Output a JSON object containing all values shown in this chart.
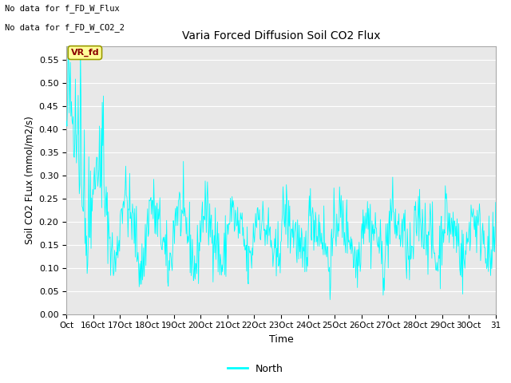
{
  "title": "Varia Forced Diffusion Soil CO2 Flux",
  "xlabel": "Time",
  "ylabel": "Soil CO2 FLux (mmol/m2/s)",
  "ylim": [
    0.0,
    0.58
  ],
  "yticks": [
    0.0,
    0.05,
    0.1,
    0.15,
    0.2,
    0.25,
    0.3,
    0.35,
    0.4,
    0.45,
    0.5,
    0.55
  ],
  "line_color": "#00FFFF",
  "bg_color": "#E8E8E8",
  "text_no_data_1": "No data for f_FD_W_Flux",
  "text_no_data_2": "No data for f_FD_W_CO2_2",
  "legend_label": "North",
  "tag_label": "VR_fd",
  "tag_bg": "#FFFF99",
  "tag_text_color": "#8B0000",
  "xtick_labels": [
    "Oct",
    "16Oct",
    "17Oct",
    "18Oct",
    "19Oct",
    "20Oct",
    "21Oct",
    "22Oct",
    "23Oct",
    "24Oct",
    "25Oct",
    "26Oct",
    "27Oct",
    "28Oct",
    "29Oct",
    "30Oct",
    "31"
  ],
  "random_seed": 42,
  "n_days": 16,
  "n_per_day": 48
}
